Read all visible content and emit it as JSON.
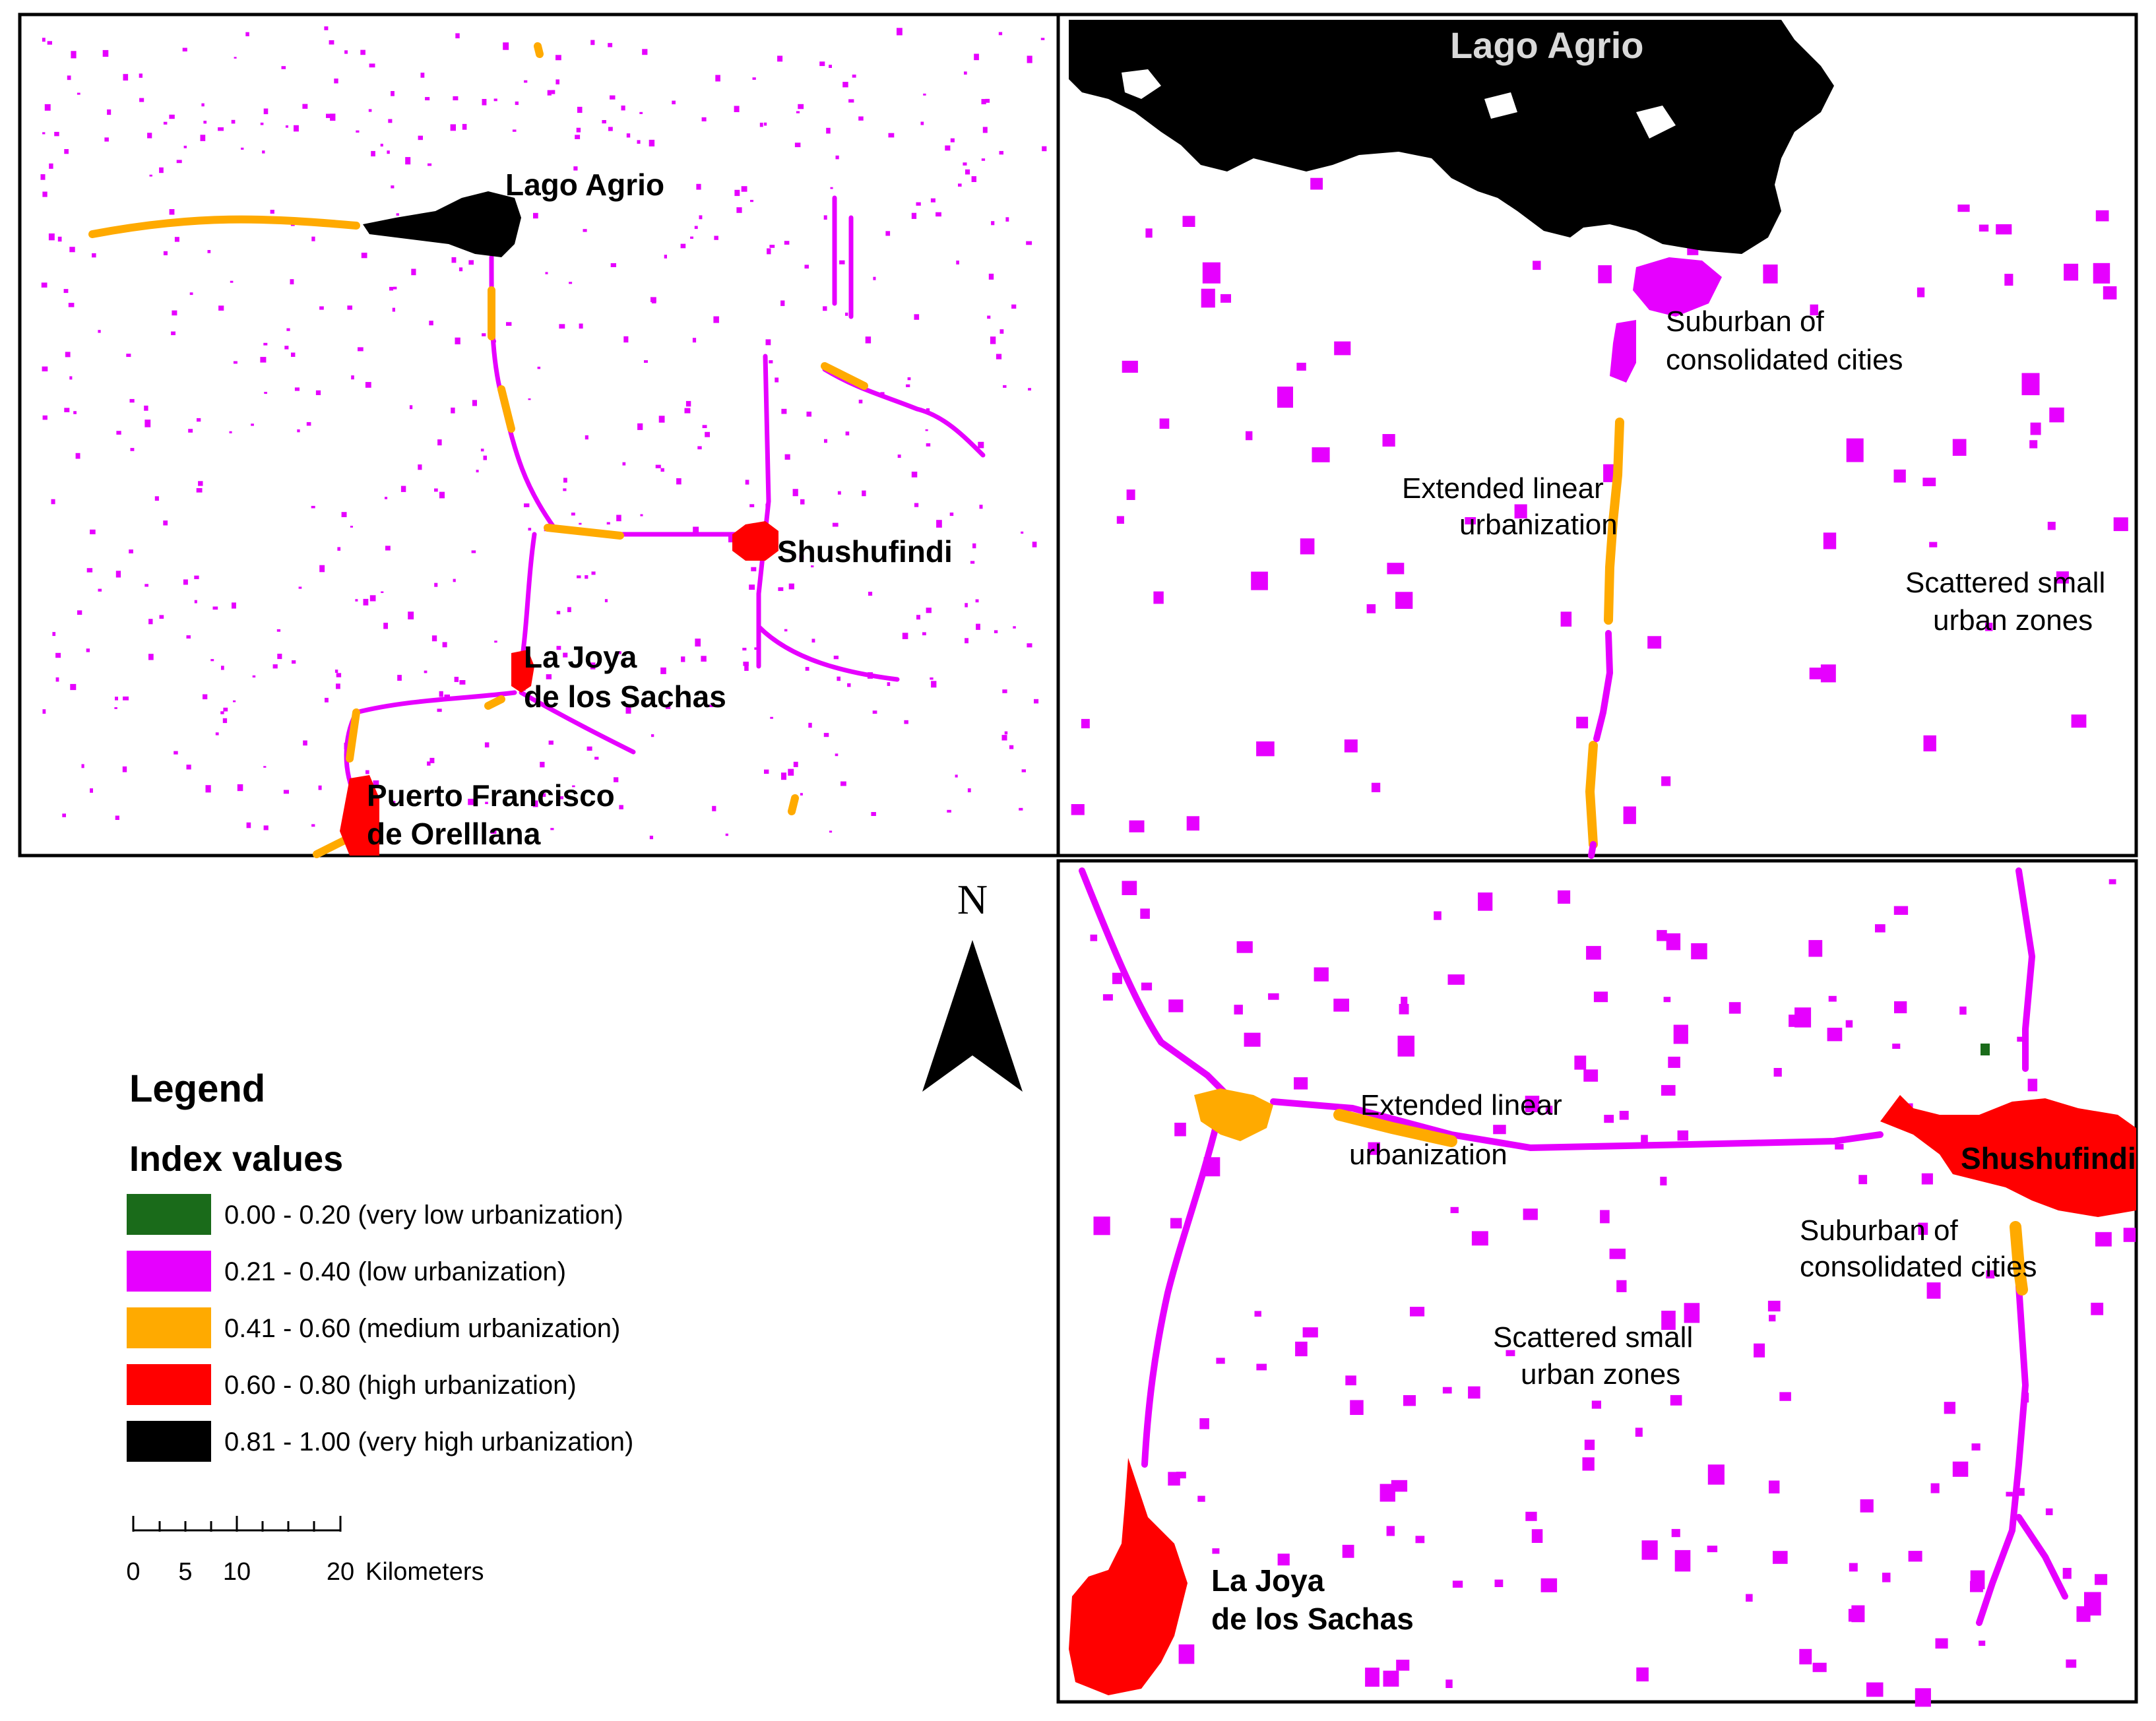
{
  "panels": {
    "overview": {
      "labels": {
        "lago_agrio": "Lago Agrio",
        "shushufindi": "Shushufindi",
        "la_joya_1": "La Joya",
        "la_joya_2": "de los Sachas",
        "puerto_1": "Puerto Francisco",
        "puerto_2": "de Orelllana"
      }
    },
    "lago_agrio_zoom": {
      "labels": {
        "city": "Lago Agrio",
        "suburban_1": "Suburban of",
        "suburban_2": "consolidated cities",
        "linear_1": "Extended linear",
        "linear_2": "urbanization",
        "scattered_1": "Scattered small",
        "scattered_2": "urban zones"
      }
    },
    "shushufindi_zoom": {
      "labels": {
        "city": "Shushufindi",
        "linear_1": "Extended linear",
        "linear_2": "urbanization",
        "suburban_1": "Suburban of",
        "suburban_2": "consolidated cities",
        "scattered_1": "Scattered small",
        "scattered_2": "urban zones",
        "la_joya_1": "La Joya",
        "la_joya_2": "de los Sachas"
      }
    }
  },
  "north_arrow": {
    "label": "N"
  },
  "legend": {
    "title": "Legend",
    "subtitle": "Index values",
    "items": [
      {
        "color": "#1a6b1a",
        "label": "0.00 - 0.20 (very  low urbanization)"
      },
      {
        "color": "#e600ff",
        "label": "0.21 - 0.40 (low urbanization)"
      },
      {
        "color": "#ffaa00",
        "label": "0.41 - 0.60 (medium urbanization)"
      },
      {
        "color": "#ff0000",
        "label": "0.60 - 0.80 (high urbanization)"
      },
      {
        "color": "#000000",
        "label": "0.81 - 1.00 (very high urbanization)"
      }
    ]
  },
  "scale_bar": {
    "ticks": [
      "0",
      "5",
      "10",
      "20"
    ],
    "unit": "Kilometers"
  },
  "colors": {
    "very_low": "#1a6b1a",
    "low": "#e600ff",
    "medium": "#ffaa00",
    "high": "#ff0000",
    "very_high": "#000000"
  }
}
